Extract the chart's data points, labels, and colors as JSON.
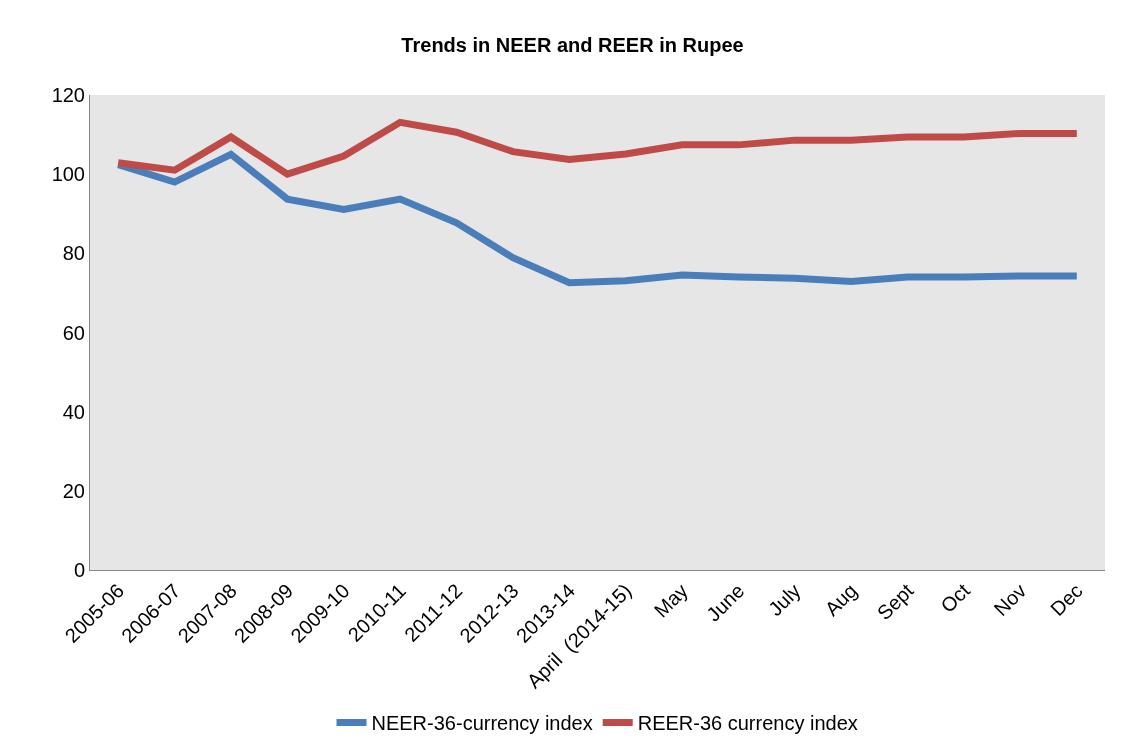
{
  "chart_data": {
    "type": "line",
    "title": "Trends in NEER and REER in Rupee",
    "categories": [
      "2005-06",
      "2006-07",
      "2007-08",
      "2008-09",
      "2009-10",
      "2010-11",
      "2011-12",
      "2012-13",
      "2013-14",
      "April  (2014-15)",
      "May",
      "June",
      "July",
      "Aug",
      "Sept",
      "Oct",
      "Nov",
      "Dec"
    ],
    "series": [
      {
        "name": "NEER-36-currency index",
        "color": "#4a7ebb",
        "values": [
          102.4,
          98,
          105,
          93.7,
          91.1,
          93.7,
          87.7,
          78.9,
          72.6,
          73.1,
          74.5,
          74,
          73.7,
          72.9,
          74,
          74,
          74.3,
          74.3
        ]
      },
      {
        "name": "REER-36 currency index",
        "color": "#be4b48",
        "values": [
          102.9,
          101,
          109.4,
          100,
          104.6,
          113.1,
          110.6,
          105.7,
          103.7,
          105.1,
          107.4,
          107.4,
          108.6,
          108.6,
          109.4,
          109.4,
          110.3,
          110.3
        ]
      }
    ],
    "ylim": [
      0,
      120
    ],
    "yticks": [
      0,
      20,
      40,
      60,
      80,
      100,
      120
    ],
    "grid": false,
    "legend": "bottom",
    "marker": "none",
    "line_style": "solid"
  }
}
